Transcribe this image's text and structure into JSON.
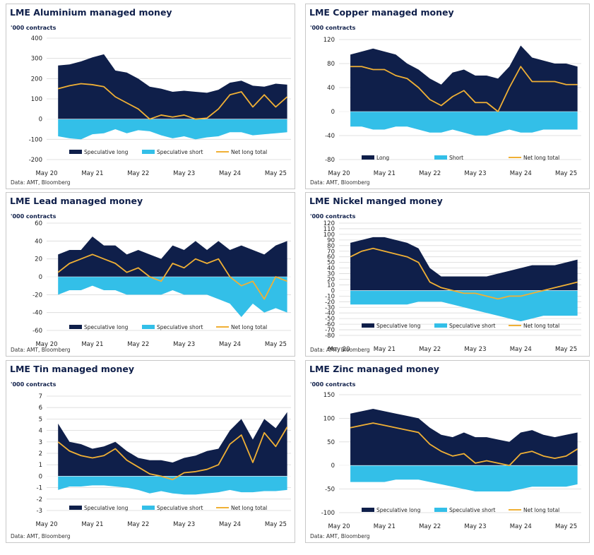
{
  "colors": {
    "long": "#0f1f4a",
    "short": "#33bfe8",
    "net": "#f0b035",
    "grid": "#d9d9d9"
  },
  "chart_data": [
    {
      "type": "area",
      "title": "LME Aluminium managed money",
      "ylabel": "'000 contracts",
      "source": "Data: AMT, Bloomberg",
      "ylim": [
        -200,
        400
      ],
      "yticks": [
        -200,
        -100,
        0,
        100,
        200,
        300,
        400
      ],
      "xticks": [
        "May 20",
        "May 21",
        "May 22",
        "May 23",
        "May 24",
        "May 25"
      ],
      "x": [
        "Aug 20",
        "Nov 20",
        "Feb 21",
        "May 21",
        "Aug 21",
        "Nov 21",
        "Feb 22",
        "May 22",
        "Aug 22",
        "Nov 22",
        "Feb 23",
        "May 23",
        "Aug 23",
        "Nov 23",
        "Feb 24",
        "May 24",
        "Aug 24",
        "Nov 24",
        "Feb 25",
        "May 25",
        "Aug 25"
      ],
      "legend": [
        "Speculative long",
        "Speculative short",
        "Net long total"
      ],
      "series": [
        {
          "name": "Speculative long",
          "values": [
            265,
            270,
            285,
            305,
            320,
            240,
            230,
            200,
            160,
            150,
            135,
            140,
            135,
            130,
            145,
            180,
            190,
            165,
            160,
            175,
            170
          ]
        },
        {
          "name": "Speculative short",
          "values": [
            -85,
            -95,
            -100,
            -75,
            -70,
            -50,
            -70,
            -55,
            -60,
            -80,
            -95,
            -85,
            -100,
            -90,
            -85,
            -65,
            -65,
            -80,
            -75,
            -70,
            -65
          ]
        },
        {
          "name": "Net long total",
          "values": [
            150,
            165,
            175,
            170,
            160,
            110,
            80,
            50,
            0,
            20,
            10,
            20,
            0,
            5,
            50,
            120,
            135,
            60,
            120,
            60,
            110
          ]
        }
      ]
    },
    {
      "type": "area",
      "title": "LME Copper managed money",
      "ylabel": "'000 contracts",
      "source": "Data: AMT, Bloomberg",
      "ylim": [
        -80,
        120
      ],
      "yticks": [
        -80,
        -40,
        0,
        40,
        80,
        120
      ],
      "xticks": [
        "May 20",
        "May 21",
        "May 22",
        "May 23",
        "May 24",
        "May 25"
      ],
      "x": [
        "Aug 20",
        "Nov 20",
        "Feb 21",
        "May 21",
        "Aug 21",
        "Nov 21",
        "Feb 22",
        "May 22",
        "Aug 22",
        "Nov 22",
        "Feb 23",
        "May 23",
        "Aug 23",
        "Nov 23",
        "Feb 24",
        "May 24",
        "Aug 24",
        "Nov 24",
        "Feb 25",
        "May 25",
        "Aug 25"
      ],
      "legend": [
        "Long",
        "Short",
        "Net long total"
      ],
      "series": [
        {
          "name": "Long",
          "values": [
            95,
            100,
            105,
            100,
            95,
            80,
            70,
            55,
            45,
            65,
            70,
            60,
            60,
            55,
            75,
            110,
            90,
            85,
            80,
            80,
            75
          ]
        },
        {
          "name": "Short",
          "values": [
            -25,
            -25,
            -30,
            -30,
            -25,
            -25,
            -30,
            -35,
            -35,
            -30,
            -35,
            -40,
            -40,
            -35,
            -30,
            -35,
            -35,
            -30,
            -30,
            -30,
            -30
          ]
        },
        {
          "name": "Net long total",
          "values": [
            75,
            75,
            70,
            70,
            60,
            55,
            40,
            20,
            10,
            25,
            35,
            15,
            15,
            0,
            40,
            75,
            50,
            50,
            50,
            45,
            45
          ]
        }
      ]
    },
    {
      "type": "area",
      "title": "LME Lead managed money",
      "ylabel": "'000 contracts",
      "source": "Data: AMT, Bloomberg",
      "ylim": [
        -60,
        60
      ],
      "yticks": [
        -60,
        -40,
        -20,
        0,
        20,
        40,
        60
      ],
      "xticks": [
        "May 20",
        "May 21",
        "May 22",
        "May 23",
        "May 24",
        "May 25"
      ],
      "x": [
        "Aug 20",
        "Nov 20",
        "Feb 21",
        "May 21",
        "Aug 21",
        "Nov 21",
        "Feb 22",
        "May 22",
        "Aug 22",
        "Nov 22",
        "Feb 23",
        "May 23",
        "Aug 23",
        "Nov 23",
        "Feb 24",
        "May 24",
        "Aug 24",
        "Nov 24",
        "Feb 25",
        "May 25",
        "Aug 25"
      ],
      "legend": [
        "Speculative long",
        "Speculative short",
        "Net long total"
      ],
      "series": [
        {
          "name": "Speculative long",
          "values": [
            25,
            30,
            30,
            45,
            35,
            35,
            25,
            30,
            25,
            20,
            35,
            30,
            40,
            30,
            40,
            30,
            35,
            30,
            25,
            35,
            40
          ]
        },
        {
          "name": "Speculative short",
          "values": [
            -20,
            -15,
            -15,
            -10,
            -15,
            -15,
            -20,
            -20,
            -20,
            -20,
            -15,
            -20,
            -20,
            -20,
            -25,
            -30,
            -45,
            -30,
            -40,
            -35,
            -40
          ]
        },
        {
          "name": "Net long total",
          "values": [
            5,
            15,
            20,
            25,
            20,
            15,
            5,
            10,
            0,
            -5,
            15,
            10,
            20,
            15,
            20,
            0,
            -10,
            -5,
            -25,
            0,
            -5
          ]
        }
      ]
    },
    {
      "type": "area",
      "title": "LME Nickel manged money",
      "ylabel": "'000 contracts",
      "source": "Data: AMT, Bloomberg",
      "ylim": [
        -80,
        120
      ],
      "yticks": [
        -80,
        -70,
        -60,
        -50,
        -40,
        -30,
        -20,
        -10,
        0,
        10,
        20,
        30,
        40,
        50,
        60,
        70,
        80,
        90,
        100,
        110,
        120
      ],
      "xticks": [
        "May 20",
        "May 21",
        "May 22",
        "May 23",
        "May 24",
        "May 25"
      ],
      "x": [
        "Aug 20",
        "Nov 20",
        "Feb 21",
        "May 21",
        "Aug 21",
        "Nov 21",
        "Feb 22",
        "May 22",
        "Aug 22",
        "Nov 22",
        "Feb 23",
        "May 23",
        "Aug 23",
        "Nov 23",
        "Feb 24",
        "May 24",
        "Aug 24",
        "Nov 24",
        "Feb 25",
        "May 25",
        "Aug 25"
      ],
      "legend": [
        "Speculative long",
        "Speculative short",
        "Net long total"
      ],
      "series": [
        {
          "name": "Speculative long",
          "values": [
            85,
            90,
            95,
            95,
            90,
            85,
            75,
            40,
            25,
            25,
            25,
            25,
            25,
            30,
            35,
            40,
            45,
            45,
            45,
            50,
            55
          ]
        },
        {
          "name": "Speculative short",
          "values": [
            -25,
            -25,
            -25,
            -25,
            -25,
            -25,
            -20,
            -20,
            -20,
            -25,
            -30,
            -35,
            -40,
            -45,
            -50,
            -55,
            -50,
            -45,
            -45,
            -45,
            -45
          ]
        },
        {
          "name": "Net long total",
          "values": [
            60,
            70,
            75,
            70,
            65,
            60,
            50,
            15,
            5,
            0,
            -5,
            -5,
            -10,
            -15,
            -10,
            -10,
            -5,
            0,
            5,
            10,
            15
          ]
        }
      ]
    },
    {
      "type": "area",
      "title": "LME Tin managed money",
      "ylabel": "'000 contracts",
      "source": "Data: AMT, Bloomberg",
      "ylim": [
        -3,
        7
      ],
      "yticks": [
        -3,
        -2,
        -1,
        0,
        1,
        2,
        3,
        4,
        5,
        6,
        7
      ],
      "xticks": [
        "May 20",
        "May 21",
        "May 22",
        "May 23",
        "May 24",
        "May 25"
      ],
      "x": [
        "Aug 20",
        "Nov 20",
        "Feb 21",
        "May 21",
        "Aug 21",
        "Nov 21",
        "Feb 22",
        "May 22",
        "Aug 22",
        "Nov 22",
        "Feb 23",
        "May 23",
        "Aug 23",
        "Nov 23",
        "Feb 24",
        "May 24",
        "Aug 24",
        "Nov 24",
        "Feb 25",
        "May 25",
        "Aug 25"
      ],
      "legend": [
        "Speculative long",
        "Speculative short",
        "Net long total"
      ],
      "series": [
        {
          "name": "Speculative long",
          "values": [
            4.6,
            3.0,
            2.8,
            2.4,
            2.6,
            3.0,
            2.2,
            1.6,
            1.4,
            1.4,
            1.2,
            1.6,
            1.8,
            2.2,
            2.4,
            4.0,
            5.0,
            3.2,
            5.0,
            4.2,
            5.6
          ]
        },
        {
          "name": "Speculative short",
          "values": [
            -1.2,
            -0.9,
            -0.9,
            -0.8,
            -0.8,
            -0.9,
            -1.0,
            -1.2,
            -1.5,
            -1.3,
            -1.5,
            -1.6,
            -1.6,
            -1.5,
            -1.4,
            -1.2,
            -1.4,
            -1.4,
            -1.3,
            -1.3,
            -1.2
          ]
        },
        {
          "name": "Net long total",
          "values": [
            3.0,
            2.2,
            1.8,
            1.6,
            1.8,
            2.4,
            1.4,
            0.8,
            0.2,
            0.0,
            -0.3,
            0.3,
            0.4,
            0.6,
            1.0,
            2.8,
            3.6,
            1.2,
            3.8,
            2.6,
            4.3
          ]
        }
      ]
    },
    {
      "type": "area",
      "title": "LME Zinc managed money",
      "ylabel": "'000 contracts",
      "source": "Data: AMT, Bloomberg",
      "ylim": [
        -100,
        150
      ],
      "yticks": [
        -100,
        -50,
        0,
        50,
        100,
        150
      ],
      "xticks": [
        "May 20",
        "May 21",
        "May 22",
        "May 23",
        "May 24",
        "May 25"
      ],
      "x": [
        "Aug 20",
        "Nov 20",
        "Feb 21",
        "May 21",
        "Aug 21",
        "Nov 21",
        "Feb 22",
        "May 22",
        "Aug 22",
        "Nov 22",
        "Feb 23",
        "May 23",
        "Aug 23",
        "Nov 23",
        "Feb 24",
        "May 24",
        "Aug 24",
        "Nov 24",
        "Feb 25",
        "May 25",
        "Aug 25"
      ],
      "legend": [
        "Speculative long",
        "Speculative short",
        "Net long total"
      ],
      "series": [
        {
          "name": "Speculative long",
          "values": [
            110,
            115,
            120,
            115,
            110,
            105,
            100,
            80,
            65,
            60,
            70,
            60,
            60,
            55,
            50,
            70,
            75,
            65,
            60,
            65,
            70
          ]
        },
        {
          "name": "Speculative short",
          "values": [
            -35,
            -35,
            -35,
            -35,
            -30,
            -30,
            -30,
            -35,
            -40,
            -45,
            -50,
            -55,
            -55,
            -55,
            -55,
            -50,
            -45,
            -45,
            -45,
            -45,
            -40
          ]
        },
        {
          "name": "Net long total",
          "values": [
            80,
            85,
            90,
            85,
            80,
            75,
            70,
            45,
            30,
            20,
            25,
            5,
            10,
            5,
            0,
            25,
            30,
            20,
            15,
            20,
            35
          ]
        }
      ]
    }
  ]
}
